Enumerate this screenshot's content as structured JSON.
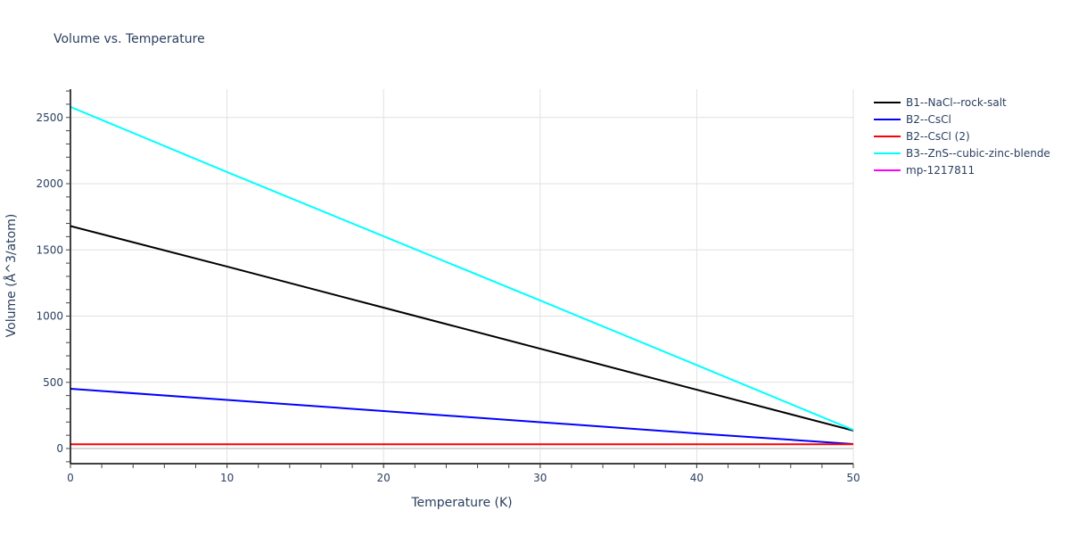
{
  "chart_data": {
    "type": "line",
    "title": "Volume vs. Temperature",
    "xlabel": "Temperature (K)",
    "ylabel": "Volume (Å^3/atom)",
    "xlim": [
      0,
      50
    ],
    "ylim": [
      -110,
      2720
    ],
    "xticks": [
      0,
      10,
      20,
      30,
      40,
      50
    ],
    "yticks": [
      0,
      500,
      1000,
      1500,
      2000,
      2500
    ],
    "grid": true,
    "legend_position": "right",
    "x": [
      0,
      10,
      20,
      30,
      40,
      50
    ],
    "series": [
      {
        "name": "B1--NaCl--rock-salt",
        "color": "#000000",
        "values": [
          1680,
          1374,
          1064,
          754,
          444,
          135
        ]
      },
      {
        "name": "B2--CsCl",
        "color": "#0000ff",
        "values": [
          451,
          367,
          283,
          199,
          114,
          34
        ]
      },
      {
        "name": "B2--CsCl (2)",
        "color": "#ff0000",
        "values": [
          32,
          32,
          32,
          32,
          32,
          32
        ]
      },
      {
        "name": "B3--ZnS--cubic-zinc-blende",
        "color": "#00ffff",
        "values": [
          2580,
          2088,
          1603,
          1118,
          630,
          140
        ]
      },
      {
        "name": "mp-1217811",
        "color": "#ff00ff",
        "values": []
      }
    ]
  }
}
